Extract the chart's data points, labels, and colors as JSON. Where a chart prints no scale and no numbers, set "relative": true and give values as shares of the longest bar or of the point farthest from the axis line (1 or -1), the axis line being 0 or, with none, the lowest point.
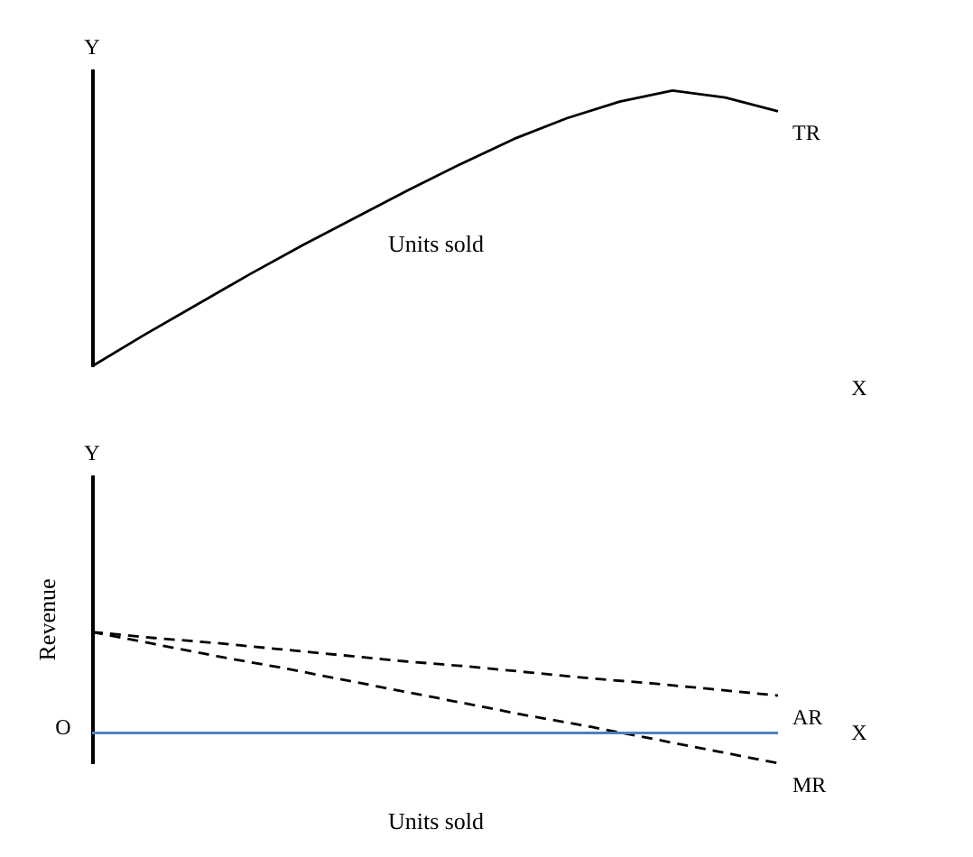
{
  "chart_data": [
    {
      "type": "line",
      "relative": true,
      "xlabel": "Units sold",
      "annotations": [
        "Y",
        "X"
      ],
      "line_style": "solid",
      "categories": [
        null,
        null,
        null,
        null,
        null,
        null,
        null,
        null,
        null,
        null,
        null,
        null,
        null,
        null
      ],
      "series": [
        {
          "name": "TR",
          "color": "#000000",
          "values": [
            0,
            0.115,
            0.225,
            0.335,
            0.44,
            0.54,
            0.64,
            0.735,
            0.825,
            0.9,
            0.96,
            1,
            0.975,
            0.925
          ]
        }
      ]
    },
    {
      "type": "line",
      "relative": true,
      "xlabel": "Units sold",
      "ylabel": "Revenue",
      "annotations": [
        "Y",
        "O",
        "X"
      ],
      "line_style": "dashed",
      "ref_lines": [
        {
          "axis": "y",
          "value": 0,
          "color": "#4f81bd"
        }
      ],
      "categories": [
        null,
        null,
        null,
        null,
        null,
        null,
        null,
        null,
        null,
        null,
        null,
        null
      ],
      "series": [
        {
          "name": "AR",
          "color": "#000000",
          "values": [
            1,
            0.94,
            0.89,
            0.83,
            0.77,
            0.71,
            0.66,
            0.6,
            0.54,
            0.49,
            0.43,
            0.37
          ]
        },
        {
          "name": "MR",
          "color": "#000000",
          "values": [
            1,
            0.88,
            0.76,
            0.65,
            0.53,
            0.41,
            0.29,
            0.17,
            0.06,
            -0.06,
            -0.18,
            -0.3
          ]
        }
      ]
    }
  ]
}
